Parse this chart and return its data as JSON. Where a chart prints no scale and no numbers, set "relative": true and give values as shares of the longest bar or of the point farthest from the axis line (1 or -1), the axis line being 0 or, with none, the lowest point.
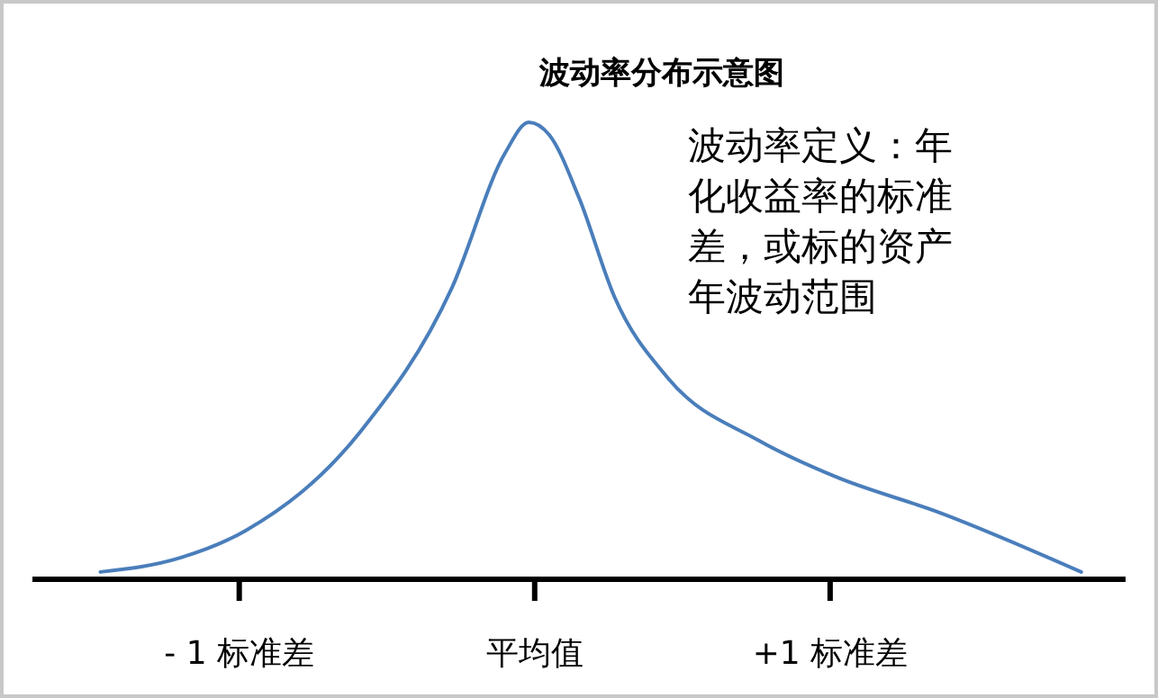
{
  "chart_data": {
    "type": "line",
    "title": "波动率分布示意图",
    "relative": true,
    "x": [
      -1.47,
      -1.2,
      -0.98,
      -0.59,
      -0.28,
      -0.1,
      -0.02,
      0.05,
      0.15,
      0.27,
      0.45,
      0.76,
      1.02,
      1.37,
      1.85
    ],
    "series": [
      {
        "color": "#4a7ebb",
        "values": [
          0.016,
          0.047,
          0.106,
          0.323,
          0.638,
          0.933,
          1.0,
          0.972,
          0.835,
          0.618,
          0.441,
          0.303,
          0.224,
          0.146,
          0.016
        ]
      }
    ],
    "xlim": [
      -1.7,
      2.0
    ],
    "xticks": [
      {
        "value": -1,
        "label": "- 1 标准差"
      },
      {
        "value": 0,
        "label": "平均值"
      },
      {
        "value": 1,
        "label": "+1 标准差"
      }
    ],
    "annotations": [
      "波动率定义：年化收益率的标准差，或标的资产年波动范围"
    ],
    "grid": false,
    "marker": "none"
  }
}
